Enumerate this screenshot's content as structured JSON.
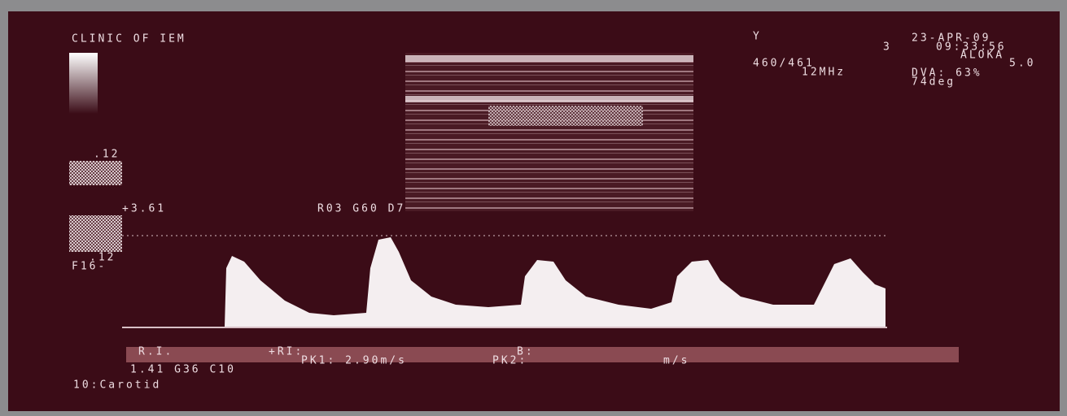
{
  "header": {
    "clinic": "CLINIC OF IEM",
    "y_label": "Y",
    "marker": "3",
    "date": "23-APR-09",
    "time": "09:33:56",
    "maker": "ALOKA",
    "setting": "5.0",
    "frame": "460/461",
    "frequency": "12MHz",
    "dva": "DVA: 63%",
    "angle": "74deg"
  },
  "scale": {
    "top": ".12",
    "velocity": "+3.61",
    "gain": "R03 G60 D7",
    "bottom": ".12",
    "filter": "F16-"
  },
  "measurements": {
    "ri": "R.I.",
    "plus_ri": "+RI:",
    "b": "B:",
    "pk1": "PK1: 2.90m/s",
    "pk2": "PK2:",
    "pk2_unit": "m/s",
    "settings": "1.41 G36 C10",
    "preset": "10:Carotid"
  }
}
